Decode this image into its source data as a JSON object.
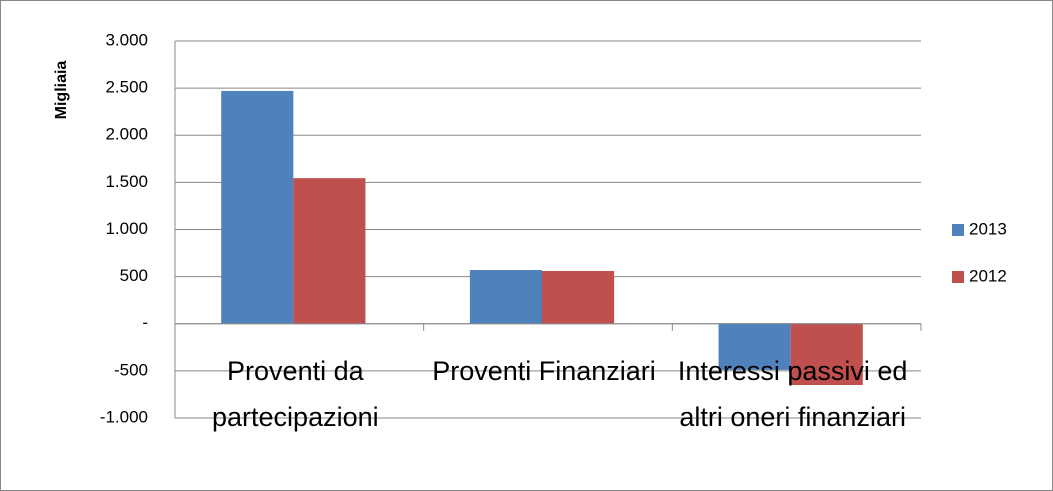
{
  "chart_data": {
    "type": "bar",
    "y_axis_label": "Migliaia",
    "categories": [
      "Proventi da partecipazioni",
      "Proventi Finanziari",
      "Interessi passivi ed altri oneri finanziari"
    ],
    "series": [
      {
        "name": "2013",
        "color": "#4f81bd",
        "values": [
          2470,
          570,
          -490
        ]
      },
      {
        "name": "2012",
        "color": "#c0504d",
        "values": [
          1545,
          560,
          -650
        ]
      }
    ],
    "ylim": [
      -1000,
      3000
    ],
    "yticks": [
      {
        "value": -1000,
        "label": "-1.000"
      },
      -500,
      {
        "value": 0,
        "label": "-"
      },
      500,
      {
        "value": 1000,
        "label": "1.000"
      },
      {
        "value": 1500,
        "label": "1.500"
      },
      {
        "value": 2000,
        "label": "2.000"
      },
      {
        "value": 2500,
        "label": "2.500"
      },
      {
        "value": 3000,
        "label": "3.000"
      }
    ],
    "grid": true,
    "legend": "right"
  }
}
